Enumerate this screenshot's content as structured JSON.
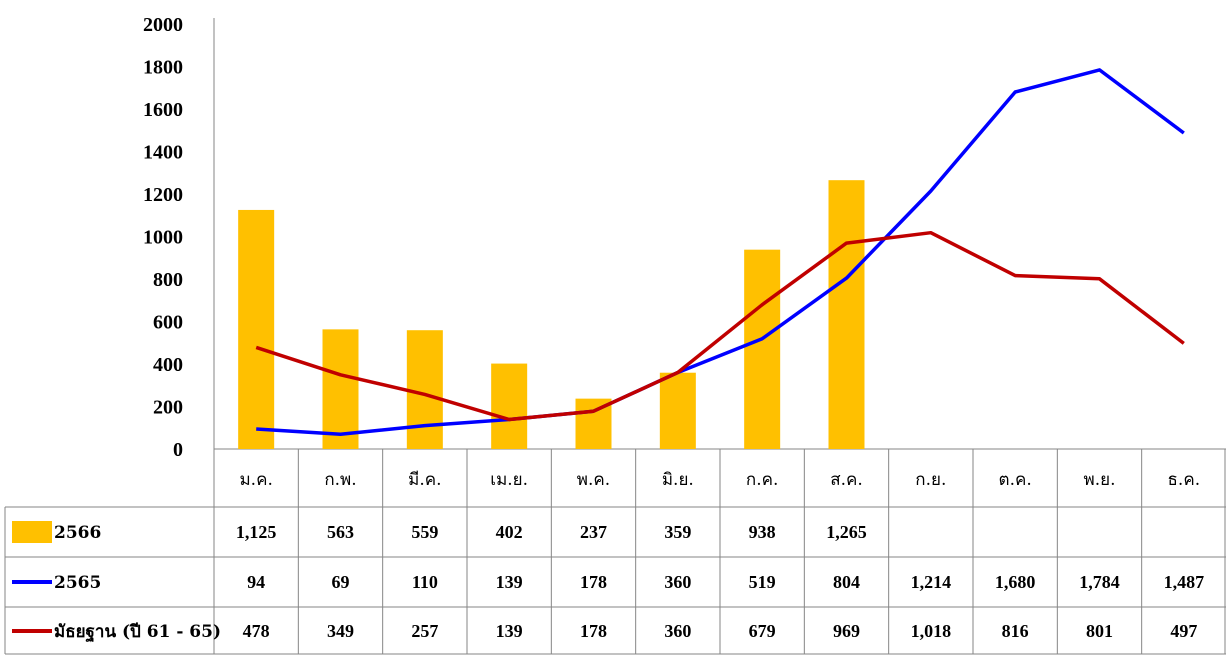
{
  "chart_data": {
    "type": "bar",
    "categories": [
      "ม.ค.",
      "ก.พ.",
      "มี.ค.",
      "เม.ย.",
      "พ.ค.",
      "มิ.ย.",
      "ก.ค.",
      "ส.ค.",
      "ก.ย.",
      "ต.ค.",
      "พ.ย.",
      "ธ.ค."
    ],
    "ylim": [
      0,
      2000
    ],
    "yticks": [
      0,
      200,
      400,
      600,
      800,
      1000,
      1200,
      1400,
      1600,
      1800,
      2000
    ],
    "grid": false,
    "legend_placement": "data-table-left",
    "series": [
      {
        "name": "2566",
        "type": "bar",
        "color": "#FFC000",
        "values": [
          1125,
          563,
          559,
          402,
          237,
          359,
          938,
          1265,
          null,
          null,
          null,
          null
        ],
        "labels": [
          "1,125",
          "563",
          "559",
          "402",
          "237",
          "359",
          "938",
          "1,265",
          "",
          "",
          "",
          ""
        ]
      },
      {
        "name": "2565",
        "type": "line",
        "color": "#0000FF",
        "values": [
          94,
          69,
          110,
          139,
          178,
          360,
          519,
          804,
          1214,
          1680,
          1784,
          1487
        ],
        "labels": [
          "94",
          "69",
          "110",
          "139",
          "178",
          "360",
          "519",
          "804",
          "1,214",
          "1,680",
          "1,784",
          "1,487"
        ]
      },
      {
        "name": "มัธยฐาน (ปี 61 - 65)",
        "type": "line",
        "color": "#C00000",
        "values": [
          478,
          349,
          257,
          139,
          178,
          360,
          679,
          969,
          1018,
          816,
          801,
          497
        ],
        "labels": [
          "478",
          "349",
          "257",
          "139",
          "178",
          "360",
          "679",
          "969",
          "1,018",
          "816",
          "801",
          "497"
        ]
      }
    ]
  }
}
